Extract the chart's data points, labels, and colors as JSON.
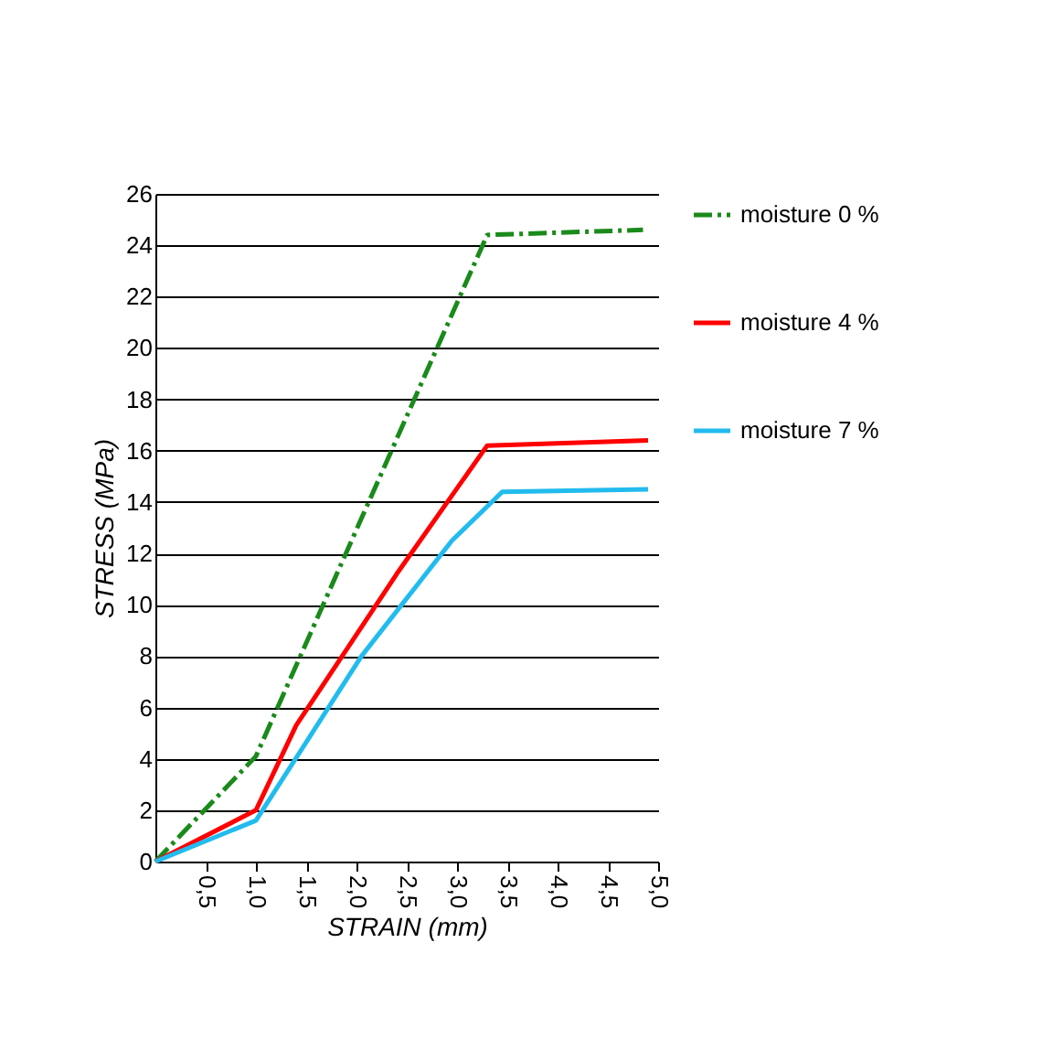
{
  "chart_data": {
    "type": "line",
    "xlabel": "STRAIN (mm)",
    "ylabel": "STRESS (MPa)",
    "xlim": [
      0,
      5
    ],
    "xticks": [
      {
        "value": 0.5,
        "label": "0,5"
      },
      {
        "value": 1,
        "label": "1,0"
      },
      {
        "value": 1.5,
        "label": "1,5"
      },
      {
        "value": 2,
        "label": "2,0"
      },
      {
        "value": 2.5,
        "label": "2,5"
      },
      {
        "value": 3,
        "label": "3,0"
      },
      {
        "value": 3.5,
        "label": "3,5"
      },
      {
        "value": 4,
        "label": "4,0"
      },
      {
        "value": 4.5,
        "label": "4,5"
      },
      {
        "value": 5,
        "label": "5,0"
      }
    ],
    "ylim": [
      0,
      26
    ],
    "yticks": [
      0,
      2,
      4,
      6,
      8,
      10,
      12,
      14,
      16,
      18,
      20,
      22,
      24,
      26
    ],
    "grid": "y",
    "legend": "top right",
    "marker": "none",
    "series": [
      {
        "name": "moisture 0 %",
        "color": "#1a8a1a",
        "line_style": "dashed",
        "x": [
          0,
          1.0,
          3.3,
          4.85
        ],
        "values": [
          0,
          4.1,
          24.4,
          24.6
        ]
      },
      {
        "name": "moisture 4 %",
        "color": "#ff0000",
        "line_style": "solid",
        "x": [
          0,
          1.0,
          1.4,
          2.4,
          3.3,
          4.9
        ],
        "values": [
          0,
          2.0,
          5.3,
          11.2,
          16.2,
          16.4
        ]
      },
      {
        "name": "moisture 7 %",
        "color": "#22bbee",
        "line_style": "solid",
        "x": [
          0,
          1.0,
          2.05,
          2.95,
          3.45,
          4.9
        ],
        "values": [
          0,
          1.6,
          8.0,
          12.5,
          14.4,
          14.5
        ]
      }
    ]
  }
}
